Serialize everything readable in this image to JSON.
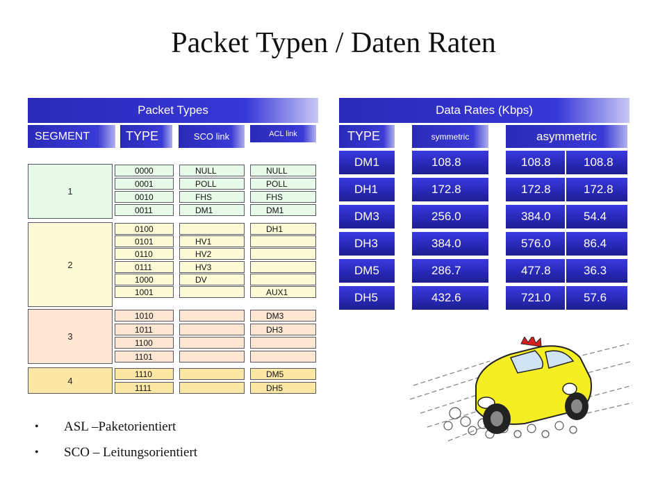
{
  "title": "Packet Typen / Daten Raten",
  "packet_types": {
    "header": "Packet Types",
    "col_headers": {
      "segment": "SEGMENT",
      "type": "TYPE",
      "sco": "SCO link",
      "acl": "ACL link"
    },
    "segments": [
      {
        "label": "1",
        "color": "#e8fbe8"
      },
      {
        "label": "2",
        "color": "#fdfbd6"
      },
      {
        "label": "3",
        "color": "#fde6d2"
      },
      {
        "label": "4",
        "color": "#fde7a4"
      }
    ],
    "rows": [
      {
        "type": "0000",
        "sco": "NULL",
        "acl": "NULL"
      },
      {
        "type": "0001",
        "sco": "POLL",
        "acl": "POLL"
      },
      {
        "type": "0010",
        "sco": "FHS",
        "acl": "FHS"
      },
      {
        "type": "0011",
        "sco": "DM1",
        "acl": "DM1"
      },
      {
        "type": "0100",
        "sco": "",
        "acl": "DH1"
      },
      {
        "type": "0101",
        "sco": "HV1",
        "acl": ""
      },
      {
        "type": "0110",
        "sco": "HV2",
        "acl": ""
      },
      {
        "type": "0111",
        "sco": "HV3",
        "acl": ""
      },
      {
        "type": "1000",
        "sco": "DV",
        "acl": ""
      },
      {
        "type": "1001",
        "sco": "",
        "acl": "AUX1"
      },
      {
        "type": "1010",
        "sco": "",
        "acl": "DM3"
      },
      {
        "type": "1011",
        "sco": "",
        "acl": "DH3"
      },
      {
        "type": "1100",
        "sco": "",
        "acl": ""
      },
      {
        "type": "1101",
        "sco": "",
        "acl": ""
      },
      {
        "type": "1110",
        "sco": "",
        "acl": "DM5"
      },
      {
        "type": "1111",
        "sco": "",
        "acl": "DH5"
      }
    ]
  },
  "data_rates": {
    "header": "Data Rates (Kbps)",
    "col_headers": {
      "type": "TYPE",
      "symmetric": "symmetric",
      "asymmetric": "asymmetric"
    },
    "rows": [
      {
        "type": "DM1",
        "symmetric": "108.8",
        "asym_forward": "108.8",
        "asym_reverse": "108.8"
      },
      {
        "type": "DH1",
        "symmetric": "172.8",
        "asym_forward": "172.8",
        "asym_reverse": "172.8"
      },
      {
        "type": "DM3",
        "symmetric": "256.0",
        "asym_forward": "384.0",
        "asym_reverse": "54.4"
      },
      {
        "type": "DH3",
        "symmetric": "384.0",
        "asym_forward": "576.0",
        "asym_reverse": "86.4"
      },
      {
        "type": "DM5",
        "symmetric": "286.7",
        "asym_forward": "477.8",
        "asym_reverse": "36.3"
      },
      {
        "type": "DH5",
        "symmetric": "432.6",
        "asym_forward": "721.0",
        "asym_reverse": "57.6"
      }
    ]
  },
  "bullets": [
    "ASL –Paketorientiert",
    "SCO – Leitungsorientiert"
  ],
  "colors": {
    "accent": "#2f2fc8"
  },
  "illustration": "speeding-car-icon"
}
